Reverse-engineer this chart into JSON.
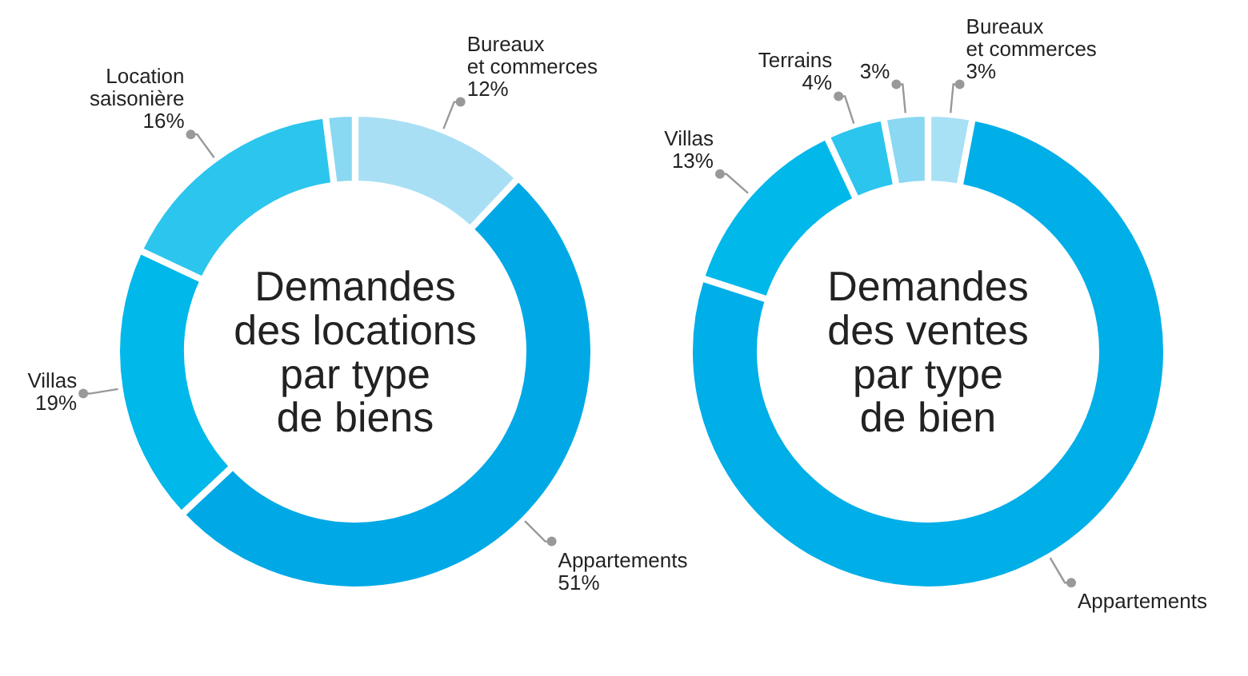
{
  "chart_data": [
    {
      "type": "donut",
      "title": "Demandes\ndes locations\npar type\nde biens",
      "categories": [
        "Bureaux\net commerces",
        "Appartements",
        "Villas",
        "Location\nsaisonière",
        null
      ],
      "values": [
        12,
        51,
        19,
        16,
        2
      ],
      "value_labels": [
        "12%",
        "51%",
        "19%",
        "16%",
        null
      ],
      "colors": [
        "#a8dff5",
        "#00a9e6",
        "#00b8ea",
        "#2cc5ee",
        "#8ad8f2"
      ]
    },
    {
      "type": "donut",
      "title": "Demandes\ndes ventes\npar type\nde bien",
      "categories": [
        "Bureaux\net commerces",
        "Appartements",
        "Villas",
        "Terrains",
        null
      ],
      "values": [
        3,
        77,
        13,
        4,
        3
      ],
      "value_labels": [
        "3%",
        null,
        "13%",
        "4%",
        "3%"
      ],
      "colors": [
        "#a8e0f5",
        "#00aee8",
        "#00b8ea",
        "#2cc5ee",
        "#8ad8f2"
      ]
    }
  ]
}
